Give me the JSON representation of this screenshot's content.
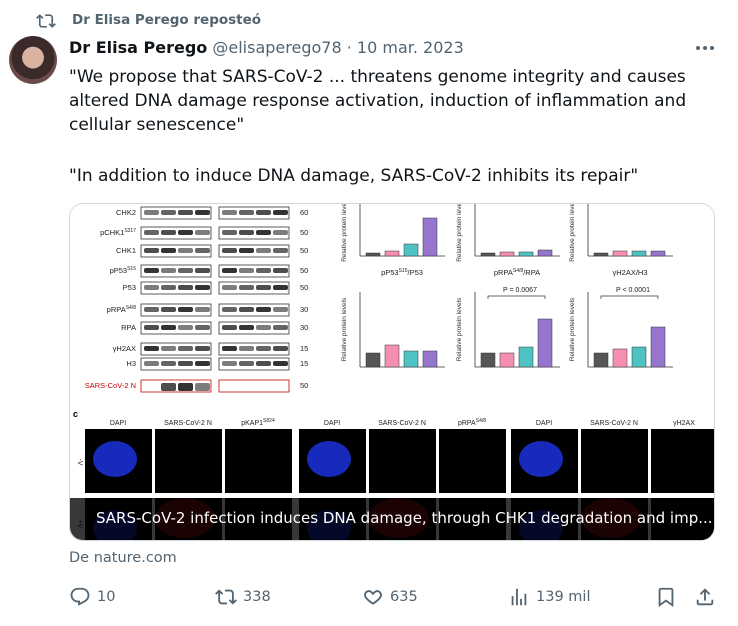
{
  "retweet": {
    "label": "Dr Elisa Perego reposteó"
  },
  "tweet": {
    "author": "Dr Elisa Perego",
    "handle": "@elisaperego78",
    "separator": "·",
    "date": "10 mar. 2023",
    "paragraphs": [
      [
        "\"We propose that SARS-CoV-2 ... threatens genome integrity and causes",
        "altered DNA damage response activation, induction of inflammation and",
        "cellular senescence\""
      ],
      [
        "\"In addition to induce DNA damage, SARS-CoV-2 inhibits its repair\""
      ]
    ]
  },
  "card": {
    "caption": "SARS-CoV-2 infection induces DNA damage, through CHK1 degradation and imp...",
    "source": "De nature.com",
    "figure": {
      "blots": [
        {
          "label": "CHK2",
          "sup": "",
          "kda": "60"
        },
        {
          "label": "pCHK1",
          "sup": "S317",
          "kda": "50"
        },
        {
          "label": "CHK1",
          "sup": "",
          "kda": "50"
        },
        {
          "label": "pP53",
          "sup": "S15",
          "kda": "50"
        },
        {
          "label": "P53",
          "sup": "",
          "kda": "50"
        },
        {
          "label": "pRPA",
          "sup": "S4/8",
          "kda": "30"
        },
        {
          "label": "RPA",
          "sup": "",
          "kda": "30"
        },
        {
          "label": "γH2AX",
          "sup": "",
          "kda": "15"
        },
        {
          "label": "H3",
          "sup": "",
          "kda": "15"
        },
        {
          "label": "SARS-CoV-2 N",
          "sup": "",
          "kda": "50"
        }
      ],
      "y_label": "Relative protein levels",
      "chart_titles": [
        {
          "base": "pP53",
          "sup": "S15",
          "rest": "/P53"
        },
        {
          "base": "pRPA",
          "sup": "S4/8",
          "rest": "/RPA"
        },
        {
          "base": "γH2AX/H3",
          "sup": "",
          "rest": ""
        }
      ],
      "p_values": [
        "P = 0.0067",
        "P < 0.0001"
      ],
      "panel": "c",
      "micro_headers": [
        {
          "base": "DAPI",
          "sup": ""
        },
        {
          "base": "SARS-CoV-2 N",
          "sup": ""
        },
        {
          "base": "pKAP1",
          "sup": "S824"
        },
        {
          "base": "DAPI",
          "sup": ""
        },
        {
          "base": "SARS-CoV-2 N",
          "sup": ""
        },
        {
          "base": "pRPA",
          "sup": "S4/8"
        },
        {
          "base": "DAPI",
          "sup": ""
        },
        {
          "base": "SARS-CoV-2 N",
          "sup": ""
        },
        {
          "base": "γH2AX",
          "sup": ""
        }
      ],
      "rows": [
        "-V",
        "+V"
      ]
    }
  },
  "actions": {
    "replies": "10",
    "reposts": "338",
    "likes": "635",
    "views": "139 mil"
  }
}
